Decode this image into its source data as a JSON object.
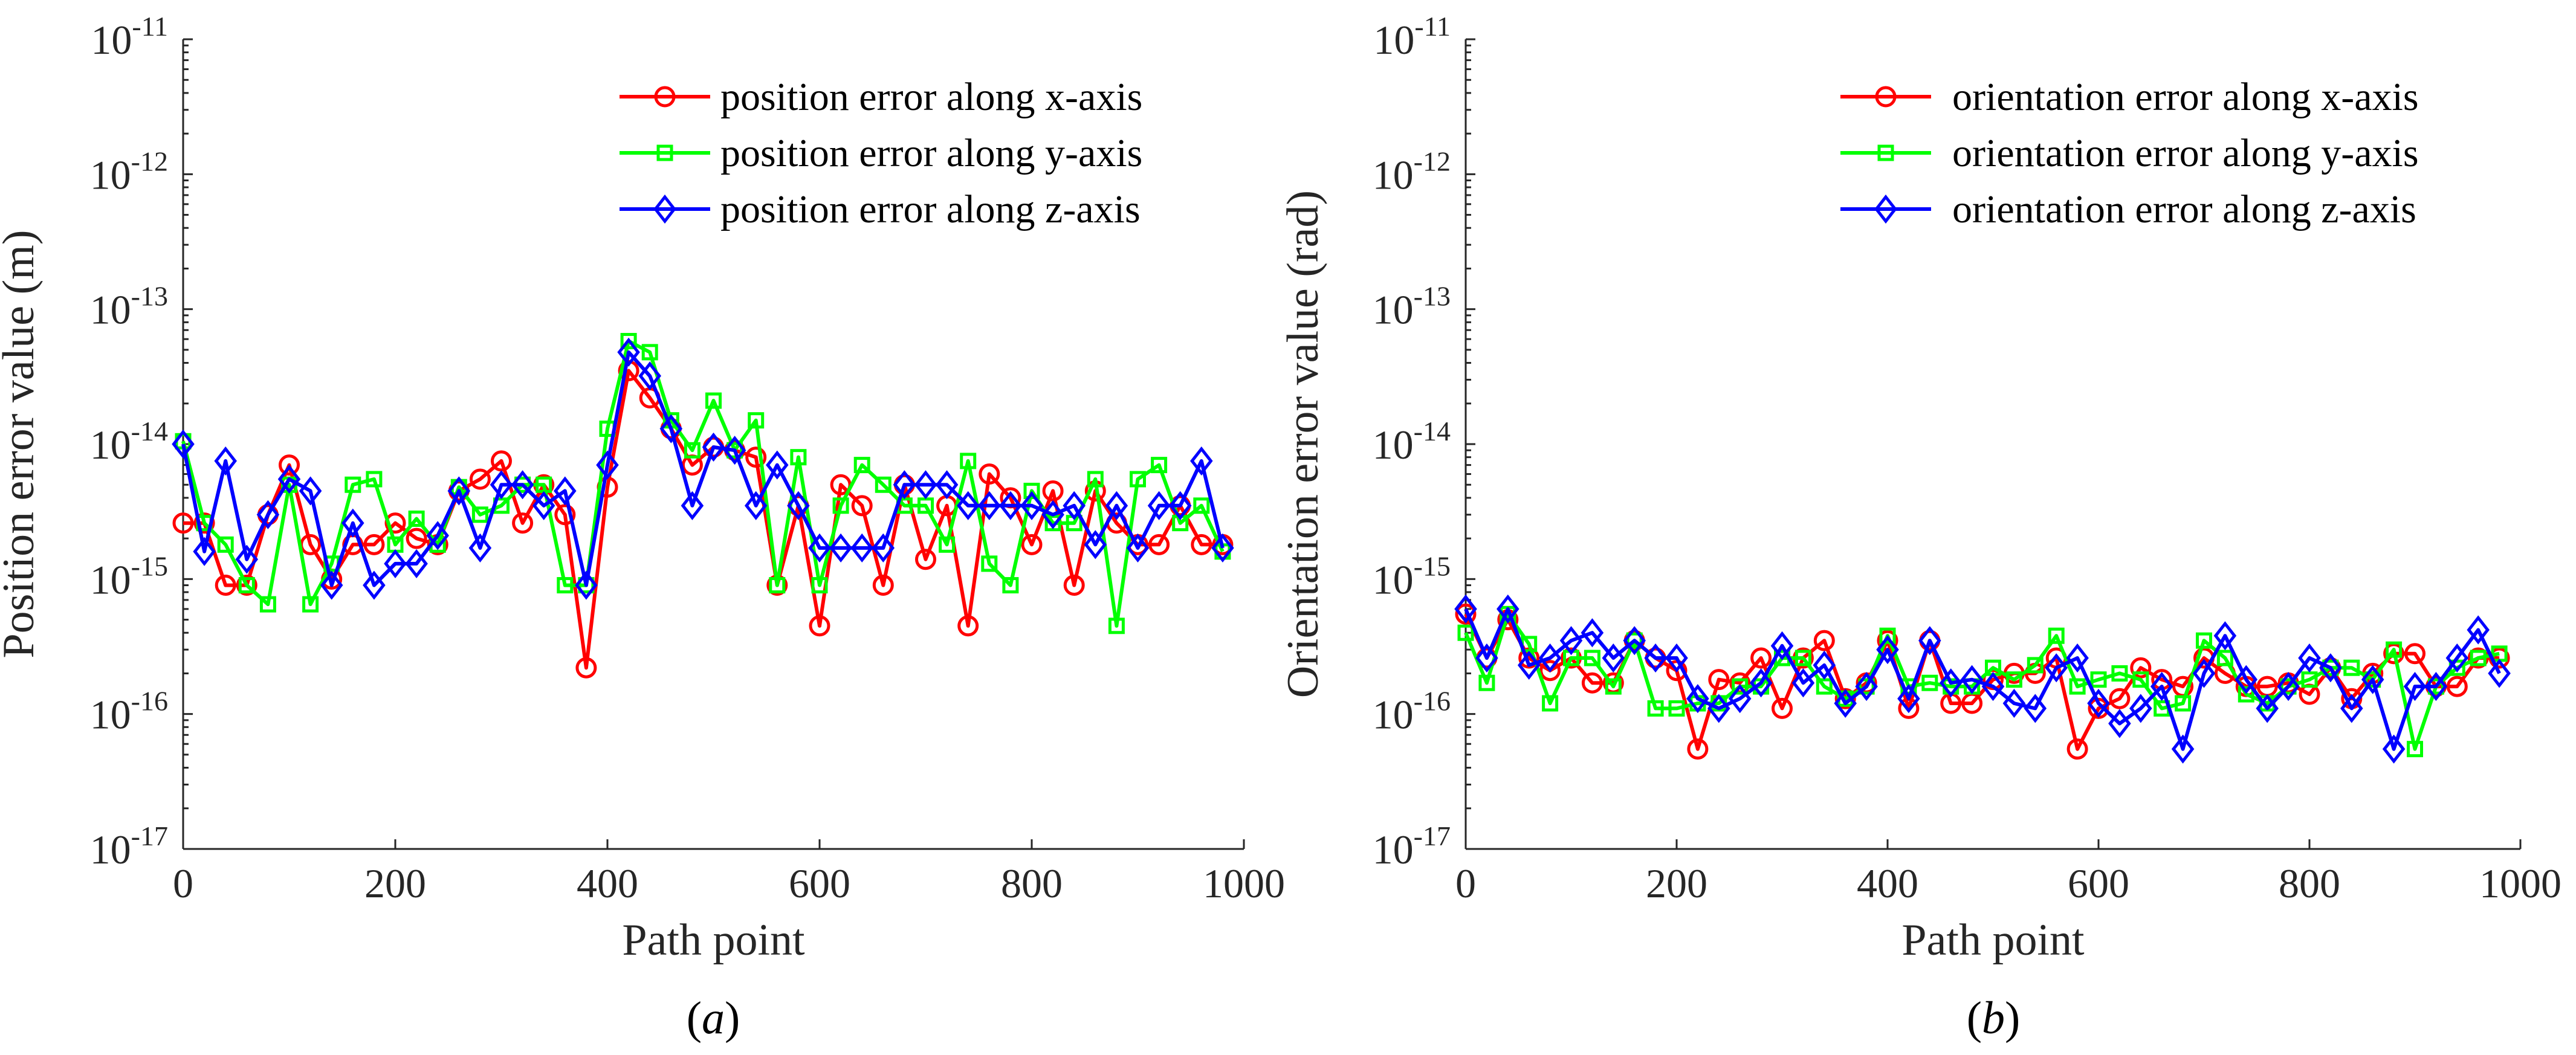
{
  "chart_data": [
    {
      "type": "line",
      "id": "a",
      "caption_open": "(",
      "caption": "a",
      "caption_close": ")",
      "xlabel": "Path point",
      "ylabel": "Position error value (m)",
      "xlim": [
        0,
        1000
      ],
      "ylim_log10": [
        -17,
        -11
      ],
      "yscale": "log",
      "xticks": [
        0,
        200,
        400,
        600,
        800,
        1000
      ],
      "xtick_labels": [
        "0",
        "200",
        "400",
        "600",
        "800",
        "1000"
      ],
      "ytick_exponents": [
        -17,
        -16,
        -15,
        -14,
        -13,
        -12,
        -11
      ],
      "ytick_base": "10",
      "ytick_exps": [
        "-17",
        "-16",
        "-15",
        "-14",
        "-13",
        "-12",
        "-11"
      ],
      "legend_position": "top-right",
      "x": [
        0,
        20,
        40,
        60,
        80,
        100,
        120,
        140,
        160,
        180,
        200,
        220,
        240,
        260,
        280,
        300,
        320,
        340,
        360,
        380,
        400,
        420,
        440,
        460,
        480,
        500,
        520,
        540,
        560,
        580,
        600,
        620,
        640,
        660,
        680,
        700,
        720,
        740,
        760,
        780,
        800,
        820,
        840,
        860,
        880,
        900,
        920,
        940,
        960,
        980
      ],
      "series": [
        {
          "name": "position error along x-axis",
          "color": "#ff0000",
          "marker": "circle",
          "values": [
            2.6e-15,
            2.6e-15,
            9e-16,
            9e-16,
            3e-15,
            7e-15,
            1.8e-15,
            1e-15,
            1.8e-15,
            1.8e-15,
            2.6e-15,
            2e-15,
            1.8e-15,
            4.5e-15,
            5.5e-15,
            7.5e-15,
            2.6e-15,
            5e-15,
            3e-15,
            2.2e-16,
            4.8e-15,
            3.5e-14,
            2.2e-14,
            1.3e-14,
            7e-15,
            9.5e-15,
            9e-15,
            8e-15,
            9e-16,
            3.5e-15,
            4.5e-16,
            5e-15,
            3.5e-15,
            9e-16,
            5e-15,
            1.4e-15,
            3.5e-15,
            4.5e-16,
            6e-15,
            4e-15,
            1.8e-15,
            4.5e-15,
            9e-16,
            4.5e-15,
            2.6e-15,
            1.8e-15,
            1.8e-15,
            3.5e-15,
            1.8e-15,
            1.8e-15
          ]
        },
        {
          "name": "position error along y-axis",
          "color": "#00ff00",
          "marker": "square",
          "values": [
            1.05e-14,
            2.6e-15,
            1.8e-15,
            9e-16,
            6.5e-16,
            5e-15,
            6.5e-16,
            1.3e-15,
            5e-15,
            5.5e-15,
            1.8e-15,
            2.8e-15,
            1.8e-15,
            4.8e-15,
            3e-15,
            3.5e-15,
            5e-15,
            5e-15,
            9e-16,
            9e-16,
            1.3e-14,
            5.8e-14,
            4.8e-14,
            1.5e-14,
            9e-15,
            2.1e-14,
            9e-15,
            1.5e-14,
            9e-16,
            8e-15,
            9e-16,
            3.5e-15,
            7e-15,
            5e-15,
            3.5e-15,
            3.5e-15,
            1.8e-15,
            7.5e-15,
            1.3e-15,
            9e-16,
            4.5e-15,
            2.6e-15,
            2.6e-15,
            5.5e-15,
            4.5e-16,
            5.5e-15,
            7e-15,
            2.6e-15,
            3.5e-15,
            1.6e-15
          ]
        },
        {
          "name": "position error along z-axis",
          "color": "#0000ff",
          "marker": "diamond",
          "values": [
            1e-14,
            1.6e-15,
            7.5e-15,
            1.4e-15,
            3e-15,
            5.5e-15,
            4.5e-15,
            9e-16,
            2.6e-15,
            9e-16,
            1.3e-15,
            1.3e-15,
            2.1e-15,
            4.5e-15,
            1.7e-15,
            5e-15,
            5e-15,
            3.5e-15,
            4.5e-15,
            9e-16,
            7e-15,
            4.8e-14,
            3.2e-14,
            1.3e-14,
            3.5e-15,
            9.5e-15,
            9e-15,
            3.5e-15,
            7e-15,
            3.5e-15,
            1.7e-15,
            1.7e-15,
            1.7e-15,
            1.7e-15,
            5e-15,
            5e-15,
            5e-15,
            3.5e-15,
            3.5e-15,
            3.5e-15,
            3.5e-15,
            3e-15,
            3.5e-15,
            1.8e-15,
            3.5e-15,
            1.7e-15,
            3.5e-15,
            3.5e-15,
            7.5e-15,
            1.7e-15
          ]
        }
      ]
    },
    {
      "type": "line",
      "id": "b",
      "caption_open": "(",
      "caption": "b",
      "caption_close": ")",
      "xlabel": "Path point",
      "ylabel": "Orientation error value (rad)",
      "xlim": [
        0,
        1000
      ],
      "ylim_log10": [
        -17,
        -11
      ],
      "yscale": "log",
      "xticks": [
        0,
        200,
        400,
        600,
        800,
        1000
      ],
      "xtick_labels": [
        "0",
        "200",
        "400",
        "600",
        "800",
        "1000"
      ],
      "ytick_exponents": [
        -17,
        -16,
        -15,
        -14,
        -13,
        -12,
        -11
      ],
      "ytick_base": "10",
      "ytick_exps": [
        "-17",
        "-16",
        "-15",
        "-14",
        "-13",
        "-12",
        "-11"
      ],
      "legend_position": "top-right",
      "x": [
        0,
        20,
        40,
        60,
        80,
        100,
        120,
        140,
        160,
        180,
        200,
        220,
        240,
        260,
        280,
        300,
        320,
        340,
        360,
        380,
        400,
        420,
        440,
        460,
        480,
        500,
        520,
        540,
        560,
        580,
        600,
        620,
        640,
        660,
        680,
        700,
        720,
        740,
        760,
        780,
        800,
        820,
        840,
        860,
        880,
        900,
        920,
        940,
        960,
        980
      ],
      "series": [
        {
          "name": "orientation error along x-axis",
          "color": "#ff0000",
          "marker": "circle",
          "values": [
            5.5e-16,
            2.6e-16,
            5e-16,
            2.6e-16,
            2.1e-16,
            2.6e-16,
            1.7e-16,
            1.7e-16,
            3.5e-16,
            2.6e-16,
            2.1e-16,
            5.5e-17,
            1.8e-16,
            1.7e-16,
            2.6e-16,
            1.1e-16,
            2.6e-16,
            3.5e-16,
            1.3e-16,
            1.7e-16,
            3.5e-16,
            1.1e-16,
            3.5e-16,
            1.2e-16,
            1.2e-16,
            1.8e-16,
            2e-16,
            2e-16,
            2.6e-16,
            5.5e-17,
            1.1e-16,
            1.3e-16,
            2.2e-16,
            1.8e-16,
            1.6e-16,
            2.6e-16,
            2e-16,
            1.6e-16,
            1.6e-16,
            1.7e-16,
            1.4e-16,
            2.2e-16,
            1.3e-16,
            2e-16,
            2.8e-16,
            2.8e-16,
            1.6e-16,
            1.6e-16,
            2.6e-16,
            2.6e-16
          ]
        },
        {
          "name": "orientation error along y-axis",
          "color": "#00ff00",
          "marker": "square",
          "values": [
            4e-16,
            1.7e-16,
            5.5e-16,
            3.3e-16,
            1.2e-16,
            2.6e-16,
            2.6e-16,
            1.6e-16,
            3.5e-16,
            1.1e-16,
            1.1e-16,
            1.2e-16,
            1.2e-16,
            1.6e-16,
            1.6e-16,
            2.6e-16,
            2.6e-16,
            1.6e-16,
            1.3e-16,
            1.6e-16,
            3.8e-16,
            1.6e-16,
            1.7e-16,
            1.6e-16,
            1.6e-16,
            2.2e-16,
            1.8e-16,
            2.3e-16,
            3.8e-16,
            1.6e-16,
            1.8e-16,
            2e-16,
            1.8e-16,
            1.1e-16,
            1.2e-16,
            3.5e-16,
            2.6e-16,
            1.4e-16,
            1.2e-16,
            1.6e-16,
            1.8e-16,
            2.2e-16,
            2.2e-16,
            1.8e-16,
            3e-16,
            5.5e-17,
            1.6e-16,
            2.2e-16,
            2.6e-16,
            2.8e-16
          ]
        },
        {
          "name": "orientation error along z-axis",
          "color": "#0000ff",
          "marker": "diamond",
          "values": [
            6e-16,
            2.6e-16,
            6e-16,
            2.3e-16,
            2.6e-16,
            3.5e-16,
            4e-16,
            2.6e-16,
            3.5e-16,
            2.6e-16,
            2.6e-16,
            1.3e-16,
            1.1e-16,
            1.3e-16,
            1.7e-16,
            3.2e-16,
            1.7e-16,
            2.3e-16,
            1.2e-16,
            1.6e-16,
            3e-16,
            1.3e-16,
            3.5e-16,
            1.7e-16,
            1.8e-16,
            1.6e-16,
            1.2e-16,
            1.1e-16,
            2.2e-16,
            2.6e-16,
            1.2e-16,
            8.5e-17,
            1.1e-16,
            1.6e-16,
            5.5e-17,
            2e-16,
            3.8e-16,
            1.8e-16,
            1.1e-16,
            1.6e-16,
            2.6e-16,
            2.2e-16,
            1.1e-16,
            1.8e-16,
            5.5e-17,
            1.6e-16,
            1.6e-16,
            2.6e-16,
            4.2e-16,
            2e-16
          ]
        }
      ]
    }
  ]
}
